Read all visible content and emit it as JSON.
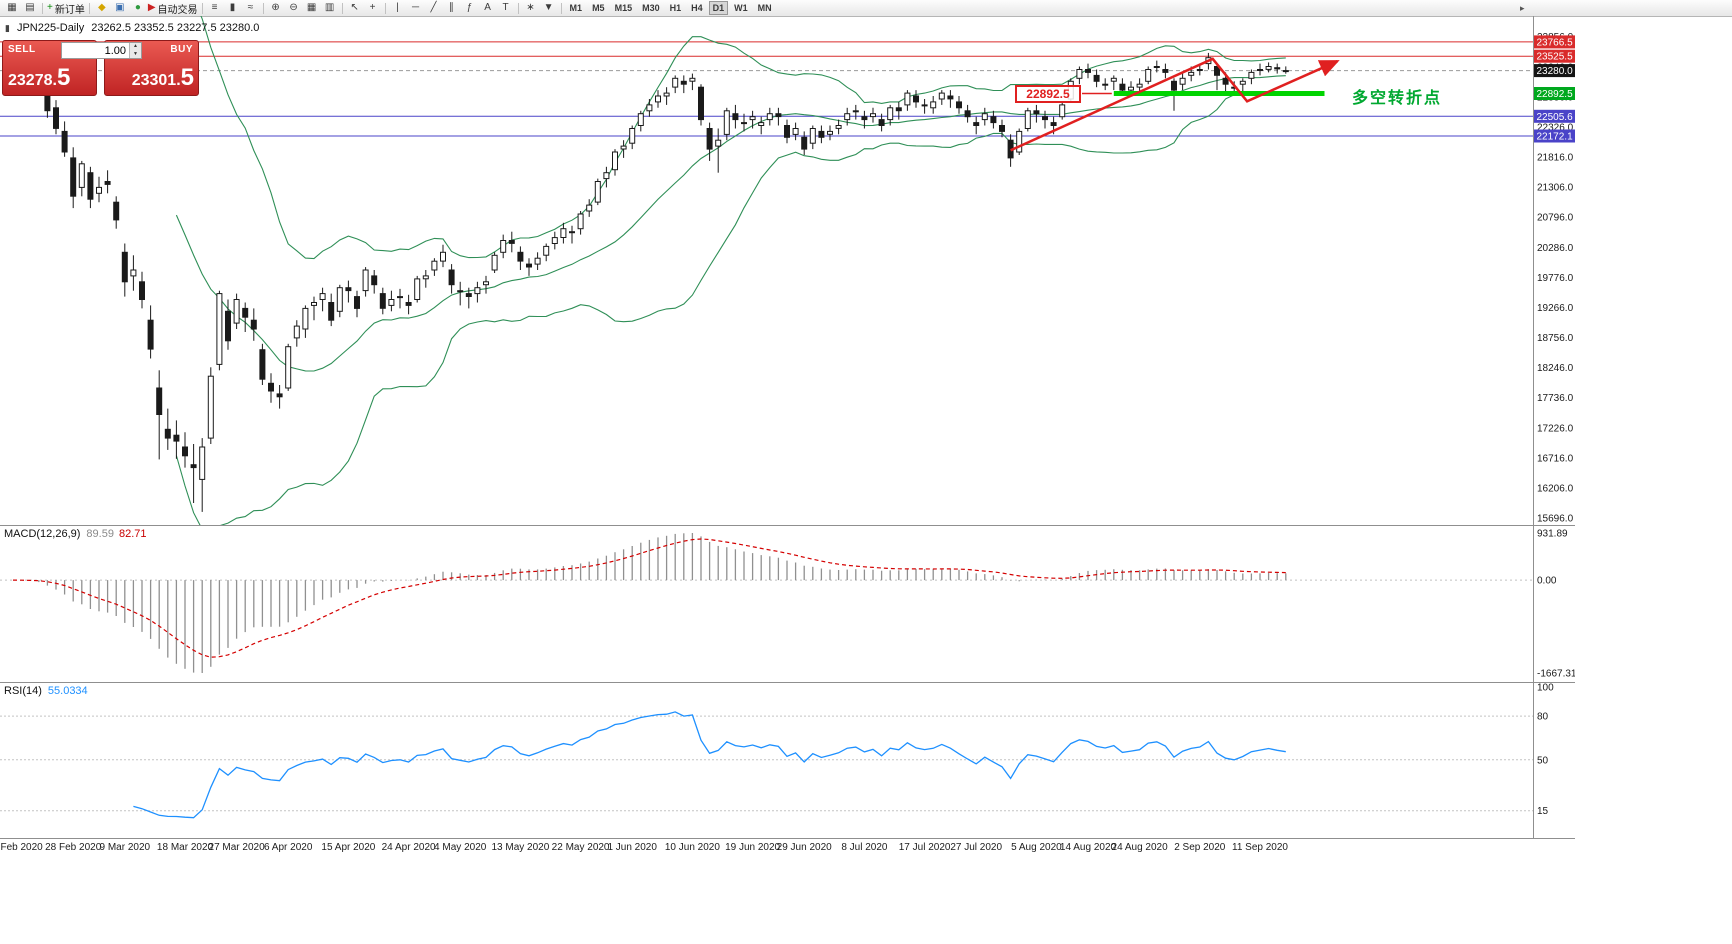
{
  "chart": {
    "title": "JPN225-Daily",
    "ohlc_readout": "23262.5 23352.5 23227.5 23280.0",
    "icon_glyph": "▮"
  },
  "one_click": {
    "sell_label": "SELL",
    "buy_label": "BUY",
    "volume": "1.00",
    "sell_price_main": "23278.",
    "sell_price_big": "5",
    "buy_price_main": "23301.",
    "buy_price_big": "5",
    "spinner_up": "▲",
    "spinner_down": "▼"
  },
  "annotations": {
    "level_box_text": "22892.5",
    "turning_point_text": "多空转折点"
  },
  "toolbar": {
    "active_timeframe": "D1",
    "overflow_glyph": "▸",
    "timeframes": [
      "M1",
      "M5",
      "M15",
      "M30",
      "H1",
      "H4",
      "D1",
      "W1",
      "MN"
    ],
    "items": [
      {
        "kind": "icon",
        "name": "new-chart-button",
        "glyph": "▦"
      },
      {
        "kind": "icon",
        "name": "profiles-button",
        "glyph": "▤"
      },
      {
        "kind": "sep"
      },
      {
        "kind": "labeled",
        "name": "new-order-button",
        "glyph": "+",
        "glyph_color": "#0c8a0c",
        "label": "新订单"
      },
      {
        "kind": "sep"
      },
      {
        "kind": "icon",
        "name": "market-watch-button",
        "glyph": "◆",
        "glyph_color": "#d4a500"
      },
      {
        "kind": "icon",
        "name": "data-window-button",
        "glyph": "▣",
        "glyph_color": "#3b6fb0"
      },
      {
        "kind": "icon",
        "name": "navigator-button",
        "glyph": "●",
        "glyph_color": "#2f9a3f"
      },
      {
        "kind": "labeled",
        "name": "autotrading-button",
        "glyph": "▶",
        "glyph_color": "#cc2222",
        "label": "自动交易"
      },
      {
        "kind": "sep"
      },
      {
        "kind": "icon",
        "name": "bar-chart-button",
        "glyph": "≡"
      },
      {
        "kind": "icon",
        "name": "candle-chart-button",
        "glyph": "▮"
      },
      {
        "kind": "icon",
        "name": "line-chart-button",
        "glyph": "≈"
      },
      {
        "kind": "sep"
      },
      {
        "kind": "icon",
        "name": "zoom-in-button",
        "glyph": "⊕"
      },
      {
        "kind": "icon",
        "name": "zoom-out-button",
        "glyph": "⊖"
      },
      {
        "kind": "icon",
        "name": "grid-button",
        "glyph": "▦"
      },
      {
        "kind": "icon",
        "name": "tile-windows-button",
        "glyph": "▥"
      },
      {
        "kind": "sep"
      },
      {
        "kind": "icon",
        "name": "cursor-button",
        "glyph": "↖"
      },
      {
        "kind": "icon",
        "name": "crosshair-button",
        "glyph": "+"
      },
      {
        "kind": "sep"
      },
      {
        "kind": "icon",
        "name": "vertical-line-button",
        "glyph": "|"
      },
      {
        "kind": "icon",
        "name": "horizontal-line-button",
        "glyph": "─"
      },
      {
        "kind": "icon",
        "name": "trendline-button",
        "glyph": "╱"
      },
      {
        "kind": "icon",
        "name": "channel-button",
        "glyph": "∥"
      },
      {
        "kind": "icon",
        "name": "fibonacci-button",
        "glyph": "ƒ"
      },
      {
        "kind": "icon",
        "name": "text-button",
        "glyph": "A"
      },
      {
        "kind": "icon",
        "name": "arrow-button",
        "glyph": "T"
      },
      {
        "kind": "sep"
      },
      {
        "kind": "icon",
        "name": "indicators-button",
        "glyph": "∗"
      },
      {
        "kind": "icon",
        "name": "templates-button",
        "glyph": "▼"
      },
      {
        "kind": "sep"
      }
    ]
  },
  "chart_data": {
    "type": "candlestick",
    "symbol": "JPN225",
    "timeframe": "Daily",
    "current_ohlc": {
      "open": 23262.5,
      "high": 23352.5,
      "low": 23227.5,
      "close": 23280.0
    },
    "current_price": 23280.0,
    "y_labels": [
      15696.0,
      16206.0,
      16716.0,
      17226.0,
      17736.0,
      18246.0,
      18756.0,
      19266.0,
      19776.0,
      20286.0,
      20796.0,
      21306.0,
      21816.0,
      22326.0,
      22836.0,
      23346.0,
      23856.0
    ],
    "x_labels": [
      [
        "Feb 2020",
        1
      ],
      [
        "28 Feb 2020",
        7
      ],
      [
        "9 Mar 2020",
        13
      ],
      [
        "18 Mar 2020",
        20
      ],
      [
        "27 Mar 2020",
        26
      ],
      [
        "6 Apr 2020",
        32
      ],
      [
        "15 Apr 2020",
        39
      ],
      [
        "24 Apr 2020",
        46
      ],
      [
        "4 May 2020",
        52
      ],
      [
        "13 May 2020",
        59
      ],
      [
        "22 May 2020",
        66
      ],
      [
        "1 Jun 2020",
        72
      ],
      [
        "10 Jun 2020",
        79
      ],
      [
        "19 Jun 2020",
        86
      ],
      [
        "29 Jun 2020",
        92
      ],
      [
        "8 Jul 2020",
        99
      ],
      [
        "17 Jul 2020",
        106
      ],
      [
        "27 Jul 2020",
        112
      ],
      [
        "5 Aug 2020",
        119
      ],
      [
        "14 Aug 2020",
        125
      ],
      [
        "24 Aug 2020",
        131
      ],
      [
        "2 Sep 2020",
        138
      ],
      [
        "11 Sep 2020",
        145
      ]
    ],
    "levels": [
      {
        "value": 23766.5,
        "color": "#d92b2b"
      },
      {
        "value": 23525.5,
        "color": "#d92b2b"
      },
      {
        "value": 22505.6,
        "color": "#4a43c8"
      },
      {
        "value": 22172.1,
        "color": "#4a43c8"
      }
    ],
    "badges": [
      {
        "value": 23766.5,
        "bg": "#d92b2b"
      },
      {
        "value": 23525.5,
        "bg": "#d92b2b"
      },
      {
        "value": 23280.0,
        "bg": "#141414"
      },
      {
        "value": 22892.5,
        "bg": "#00a81e"
      },
      {
        "value": 22505.6,
        "bg": "#4a43c8"
      },
      {
        "value": 22172.1,
        "bg": "#4a43c8"
      }
    ],
    "support_line": {
      "value": 22892.5,
      "from_index": 128,
      "to_index": 152.5,
      "color": "#00d400"
    },
    "trend_arrow": {
      "color": "#e02020",
      "points": [
        [
          116,
          21930
        ],
        [
          139.5,
          23480
        ],
        [
          143.5,
          22760
        ],
        [
          154,
          23440
        ]
      ]
    },
    "bollinger": {
      "period": 20,
      "deviation": 2,
      "color": "#2f8f57"
    },
    "macd": {
      "label": "MACD(12,26,9)",
      "value_main": "89.59",
      "value_signal": "82.71",
      "fast": 12,
      "slow": 26,
      "signal": 9,
      "axis_labels": [
        "931.89",
        "0.00",
        "-1667.31"
      ],
      "hist_color": "#909090",
      "signal_color": "#d40000"
    },
    "rsi": {
      "label": "RSI(14)",
      "period": 14,
      "value": "55.0334",
      "axis_labels": [
        100,
        80,
        50,
        15
      ],
      "color": "#1e90ff"
    },
    "candle_colors": {
      "bull_fill": "#ffffff",
      "bear_fill": "#1a1a1a",
      "stroke": "#1a1a1a"
    },
    "ohlc": [
      [
        23450,
        23530,
        23380,
        23480
      ],
      [
        23470,
        23520,
        23330,
        23390
      ],
      [
        23380,
        23450,
        23280,
        23350
      ],
      [
        23280,
        23330,
        23100,
        23200
      ],
      [
        22950,
        23000,
        22480,
        22600
      ],
      [
        22650,
        22780,
        22200,
        22300
      ],
      [
        22250,
        22420,
        21820,
        21900
      ],
      [
        21800,
        21980,
        20950,
        21150
      ],
      [
        21300,
        21750,
        21150,
        21700
      ],
      [
        21550,
        21650,
        20950,
        21100
      ],
      [
        21200,
        21480,
        21050,
        21300
      ],
      [
        21400,
        21590,
        21200,
        21350
      ],
      [
        21050,
        21150,
        20600,
        20750
      ],
      [
        20200,
        20350,
        19450,
        19700
      ],
      [
        19800,
        20150,
        19550,
        19900
      ],
      [
        19700,
        19870,
        19250,
        19400
      ],
      [
        19050,
        19300,
        18400,
        18560
      ],
      [
        17900,
        18200,
        16690,
        17450
      ],
      [
        17200,
        17550,
        16850,
        17050
      ],
      [
        17100,
        17350,
        16700,
        17000
      ],
      [
        16900,
        17150,
        16550,
        16750
      ],
      [
        16600,
        16950,
        15950,
        16550
      ],
      [
        16350,
        17050,
        15800,
        16900
      ],
      [
        17050,
        18250,
        16950,
        18100
      ],
      [
        18300,
        19550,
        18200,
        19500
      ],
      [
        19200,
        19400,
        18550,
        18700
      ],
      [
        19000,
        19500,
        18900,
        19400
      ],
      [
        19250,
        19350,
        18850,
        19100
      ],
      [
        19050,
        19250,
        18700,
        18900
      ],
      [
        18550,
        18650,
        17950,
        18050
      ],
      [
        17980,
        18150,
        17650,
        17850
      ],
      [
        17800,
        17950,
        17550,
        17750
      ],
      [
        17900,
        18650,
        17850,
        18600
      ],
      [
        18750,
        19050,
        18600,
        18950
      ],
      [
        18900,
        19300,
        18750,
        19250
      ],
      [
        19300,
        19450,
        19050,
        19350
      ],
      [
        19400,
        19600,
        19200,
        19500
      ],
      [
        19350,
        19500,
        18950,
        19050
      ],
      [
        19200,
        19650,
        19100,
        19600
      ],
      [
        19600,
        19720,
        19350,
        19550
      ],
      [
        19450,
        19550,
        19100,
        19250
      ],
      [
        19550,
        19950,
        19450,
        19900
      ],
      [
        19800,
        19900,
        19500,
        19650
      ],
      [
        19500,
        19600,
        19150,
        19250
      ],
      [
        19300,
        19550,
        19200,
        19400
      ],
      [
        19450,
        19580,
        19250,
        19450
      ],
      [
        19350,
        19480,
        19150,
        19300
      ],
      [
        19400,
        19800,
        19350,
        19750
      ],
      [
        19750,
        19900,
        19600,
        19800
      ],
      [
        19900,
        20100,
        19800,
        20050
      ],
      [
        20050,
        20330,
        19950,
        20200
      ],
      [
        19900,
        20000,
        19500,
        19650
      ],
      [
        19550,
        19700,
        19300,
        19550
      ],
      [
        19500,
        19600,
        19250,
        19450
      ],
      [
        19500,
        19700,
        19350,
        19600
      ],
      [
        19650,
        19800,
        19500,
        19700
      ],
      [
        19900,
        20200,
        19850,
        20150
      ],
      [
        20200,
        20500,
        20100,
        20400
      ],
      [
        20400,
        20550,
        20200,
        20350
      ],
      [
        20200,
        20300,
        19900,
        20050
      ],
      [
        20000,
        20100,
        19800,
        19950
      ],
      [
        20000,
        20200,
        19900,
        20100
      ],
      [
        20150,
        20350,
        20050,
        20300
      ],
      [
        20350,
        20550,
        20250,
        20450
      ],
      [
        20450,
        20700,
        20350,
        20600
      ],
      [
        20550,
        20650,
        20350,
        20550
      ],
      [
        20600,
        20900,
        20500,
        20850
      ],
      [
        20900,
        21100,
        20800,
        21000
      ],
      [
        21050,
        21450,
        21000,
        21400
      ],
      [
        21450,
        21650,
        21300,
        21550
      ],
      [
        21600,
        21950,
        21500,
        21900
      ],
      [
        21950,
        22100,
        21800,
        22000
      ],
      [
        22050,
        22350,
        21950,
        22300
      ],
      [
        22350,
        22600,
        22250,
        22550
      ],
      [
        22600,
        22800,
        22500,
        22700
      ],
      [
        22750,
        22950,
        22650,
        22850
      ],
      [
        22850,
        23000,
        22700,
        22900
      ],
      [
        23000,
        23200,
        22900,
        23150
      ],
      [
        23100,
        23200,
        22900,
        23050
      ],
      [
        23100,
        23230,
        22950,
        23150
      ],
      [
        23000,
        23050,
        22350,
        22450
      ],
      [
        22300,
        22400,
        21750,
        21950
      ],
      [
        22000,
        22300,
        21550,
        22100
      ],
      [
        22200,
        22650,
        22100,
        22600
      ],
      [
        22550,
        22700,
        22300,
        22450
      ],
      [
        22400,
        22550,
        22250,
        22400
      ],
      [
        22450,
        22600,
        22300,
        22500
      ],
      [
        22350,
        22500,
        22200,
        22400
      ],
      [
        22450,
        22650,
        22350,
        22550
      ],
      [
        22550,
        22650,
        22350,
        22500
      ],
      [
        22350,
        22450,
        22050,
        22150
      ],
      [
        22200,
        22400,
        22100,
        22300
      ],
      [
        22150,
        22250,
        21850,
        21950
      ],
      [
        22050,
        22350,
        21950,
        22300
      ],
      [
        22250,
        22350,
        22050,
        22150
      ],
      [
        22200,
        22350,
        22100,
        22250
      ],
      [
        22300,
        22450,
        22200,
        22350
      ],
      [
        22450,
        22650,
        22350,
        22550
      ],
      [
        22600,
        22700,
        22450,
        22600
      ],
      [
        22500,
        22600,
        22300,
        22450
      ],
      [
        22500,
        22650,
        22400,
        22550
      ],
      [
        22450,
        22550,
        22250,
        22350
      ],
      [
        22450,
        22700,
        22350,
        22650
      ],
      [
        22650,
        22750,
        22450,
        22600
      ],
      [
        22700,
        22950,
        22600,
        22900
      ],
      [
        22850,
        22950,
        22650,
        22750
      ],
      [
        22700,
        22800,
        22550,
        22700
      ],
      [
        22650,
        22850,
        22550,
        22750
      ],
      [
        22800,
        22950,
        22700,
        22900
      ],
      [
        22850,
        22950,
        22650,
        22800
      ],
      [
        22750,
        22850,
        22550,
        22650
      ],
      [
        22600,
        22700,
        22400,
        22500
      ],
      [
        22400,
        22500,
        22200,
        22350
      ],
      [
        22450,
        22650,
        22350,
        22550
      ],
      [
        22500,
        22600,
        22300,
        22400
      ],
      [
        22350,
        22450,
        22150,
        22250
      ],
      [
        22100,
        22200,
        21650,
        21800
      ],
      [
        21900,
        22300,
        21850,
        22250
      ],
      [
        22300,
        22650,
        22250,
        22600
      ],
      [
        22600,
        22700,
        22400,
        22550
      ],
      [
        22500,
        22600,
        22300,
        22450
      ],
      [
        22400,
        22500,
        22200,
        22350
      ],
      [
        22500,
        22750,
        22450,
        22700
      ],
      [
        22800,
        23150,
        22750,
        23100
      ],
      [
        23150,
        23350,
        23050,
        23300
      ],
      [
        23300,
        23400,
        23150,
        23250
      ],
      [
        23200,
        23300,
        23000,
        23100
      ],
      [
        23050,
        23150,
        22950,
        23050
      ],
      [
        23100,
        23200,
        22950,
        23150
      ],
      [
        23050,
        23150,
        22850,
        22950
      ],
      [
        22950,
        23100,
        22850,
        23000
      ],
      [
        23000,
        23150,
        22900,
        23050
      ],
      [
        23100,
        23350,
        23050,
        23300
      ],
      [
        23350,
        23450,
        23250,
        23350
      ],
      [
        23300,
        23400,
        23150,
        23250
      ],
      [
        23100,
        23150,
        22600,
        22950
      ],
      [
        23050,
        23250,
        22950,
        23150
      ],
      [
        23200,
        23350,
        23100,
        23250
      ],
      [
        23300,
        23400,
        23200,
        23300
      ],
      [
        23400,
        23580,
        23300,
        23500
      ],
      [
        23350,
        23400,
        22950,
        23200
      ],
      [
        23150,
        23250,
        22880,
        23050
      ],
      [
        23000,
        23100,
        22850,
        23000
      ],
      [
        23050,
        23150,
        22920,
        23100
      ],
      [
        23150,
        23300,
        23050,
        23250
      ],
      [
        23300,
        23400,
        23200,
        23300
      ],
      [
        23300,
        23420,
        23250,
        23350
      ],
      [
        23330,
        23400,
        23230,
        23310
      ],
      [
        23262.5,
        23352.5,
        23227.5,
        23280.0
      ]
    ]
  }
}
